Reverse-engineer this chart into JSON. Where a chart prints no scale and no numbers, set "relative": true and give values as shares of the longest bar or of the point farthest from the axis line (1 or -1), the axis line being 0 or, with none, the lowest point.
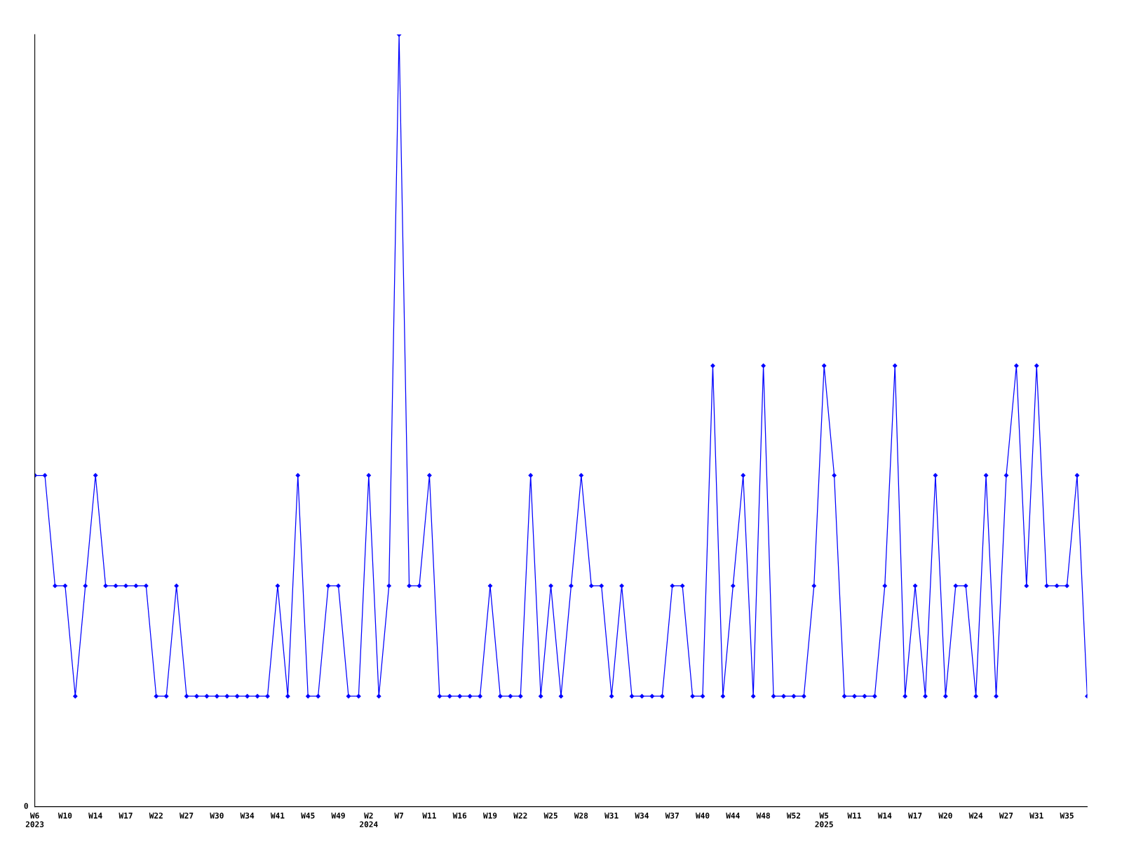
{
  "chart_data": {
    "type": "line",
    "relative": true,
    "marker": "diamond",
    "line_style": "solid",
    "categories": [
      "W6\n2023",
      null,
      null,
      "W10",
      null,
      null,
      "W14",
      null,
      null,
      "W17",
      null,
      null,
      "W22",
      null,
      null,
      "W27",
      null,
      null,
      "W30",
      null,
      null,
      "W34",
      null,
      null,
      "W41",
      null,
      null,
      "W45",
      null,
      null,
      "W49",
      null,
      null,
      "W2\n2024",
      null,
      null,
      "W7",
      null,
      null,
      "W11",
      null,
      null,
      "W16",
      null,
      null,
      "W19",
      null,
      null,
      "W22",
      null,
      null,
      "W25",
      null,
      null,
      "W28",
      null,
      null,
      "W31",
      null,
      null,
      "W34",
      null,
      null,
      "W37",
      null,
      null,
      "W40",
      null,
      null,
      "W44",
      null,
      null,
      "W48",
      null,
      null,
      "W52",
      null,
      null,
      "W5\n2025",
      null,
      null,
      "W11",
      null,
      null,
      "W14",
      null,
      null,
      "W17",
      null,
      null,
      "W20",
      null,
      null,
      "W24",
      null,
      null,
      "W27",
      null,
      null,
      "W31",
      null,
      null,
      "W35",
      null,
      null
    ],
    "series": [
      {
        "color": "#0000ff",
        "values": [
          0.429,
          0.429,
          0.286,
          0.286,
          0.143,
          0.286,
          0.429,
          0.286,
          0.286,
          0.286,
          0.286,
          0.286,
          0.143,
          0.143,
          0.286,
          0.143,
          0.143,
          0.143,
          0.143,
          0.143,
          0.143,
          0.143,
          0.143,
          0.143,
          0.286,
          0.143,
          0.429,
          0.143,
          0.143,
          0.286,
          0.286,
          0.143,
          0.143,
          0.429,
          0.143,
          0.286,
          1,
          0.286,
          0.286,
          0.429,
          0.143,
          0.143,
          0.143,
          0.143,
          0.143,
          0.286,
          0.143,
          0.143,
          0.143,
          0.429,
          0.143,
          0.286,
          0.143,
          0.286,
          0.429,
          0.286,
          0.286,
          0.143,
          0.286,
          0.143,
          0.143,
          0.143,
          0.143,
          0.286,
          0.286,
          0.143,
          0.143,
          0.571,
          0.143,
          0.286,
          0.429,
          0.143,
          0.571,
          0.143,
          0.143,
          0.143,
          0.143,
          0.286,
          0.571,
          0.429,
          0.143,
          0.143,
          0.143,
          0.143,
          0.286,
          0.571,
          0.143,
          0.286,
          0.143,
          0.429,
          0.143,
          0.286,
          0.286,
          0.143,
          0.429,
          0.143,
          0.429,
          0.571,
          0.286,
          0.571,
          0.286,
          0.286,
          0.286,
          0.429,
          0.143
        ]
      }
    ],
    "annotations": [
      "0"
    ]
  }
}
